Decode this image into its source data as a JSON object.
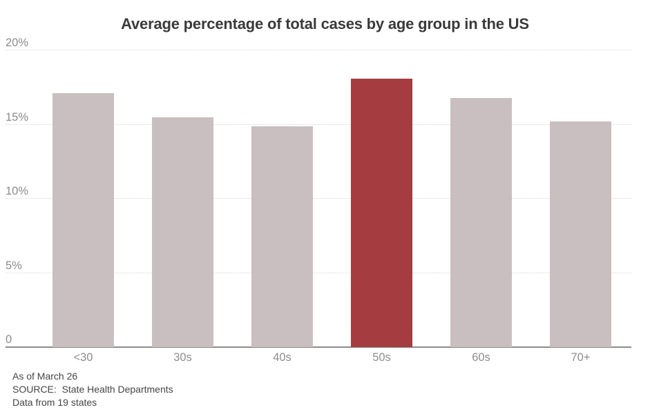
{
  "page": {
    "background": "#ffffff"
  },
  "chart_data": {
    "type": "bar",
    "title": "Average percentage of total cases by age group in the US",
    "categories": [
      "<30",
      "30s",
      "40s",
      "50s",
      "60s",
      "70+"
    ],
    "values": [
      17.1,
      15.5,
      14.9,
      18.1,
      16.8,
      15.2
    ],
    "highlight_index": 3,
    "highlighted_category": "50s",
    "xlabel": "",
    "ylabel": "",
    "ylim": [
      0,
      20
    ],
    "yticks": [
      {
        "value": 0,
        "label": "0"
      },
      {
        "value": 5,
        "label": "5%"
      },
      {
        "value": 10,
        "label": "10%"
      },
      {
        "value": 15,
        "label": "15%"
      },
      {
        "value": 20,
        "label": "20%"
      }
    ],
    "grid": "horizontal-dotted",
    "legend": "none",
    "colors": {
      "bar_default": "#c9bfc0",
      "bar_highlight": "#a43c40",
      "gridline": "#dcd8d8",
      "axis_line": "#8d8a8a",
      "tick_label": "#8e8b8b",
      "title": "#3b3a3a",
      "footer_text": "#454443"
    }
  },
  "footer": {
    "as_of": "As of March 26",
    "source": "SOURCE:  State Health Departments",
    "data_note": "Data from 19 states"
  }
}
